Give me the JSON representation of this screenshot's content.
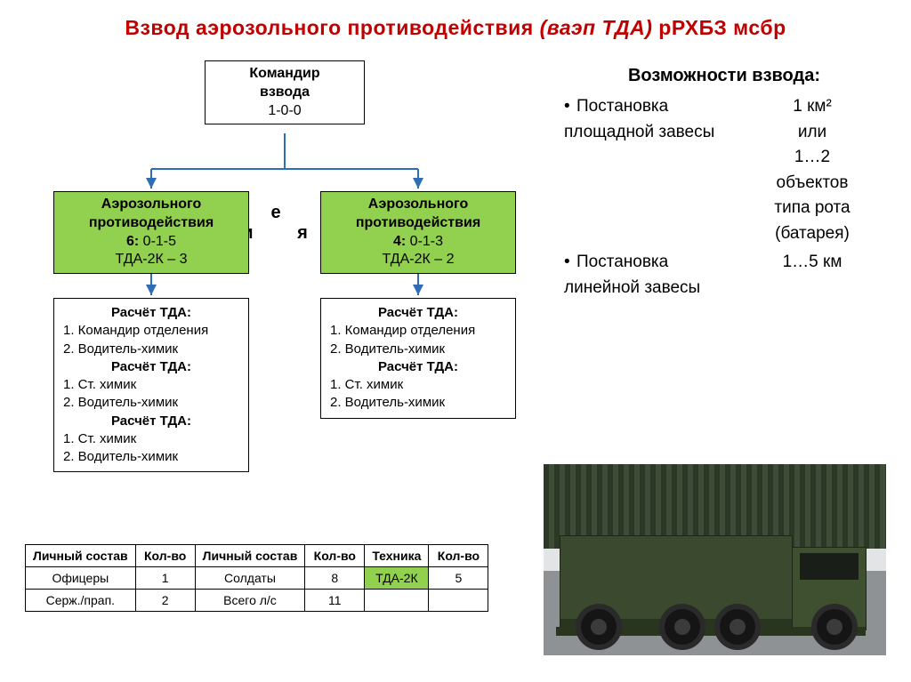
{
  "title_plain": "Взвод аэрозольного противодействия ",
  "title_ital": "(ваэп ТДА) ",
  "title_end": "рРХБЗ мсбр",
  "colors": {
    "accent": "#92d050",
    "title": "#c00000",
    "border": "#000000",
    "arrow": "#2f6db5"
  },
  "nodes": {
    "commander": {
      "line1": "Командир",
      "line2": "взвода",
      "count": "1-0-0"
    },
    "sections_label": "О т д е л е н и я",
    "left": {
      "l1": "Аэрозольного",
      "l2": "противодействия",
      "cnt_bold": "6:",
      "cnt": " 0-1-5",
      "eq": "ТДА-2К – 3"
    },
    "right": {
      "l1": "Аэрозольного",
      "l2": "противодействия",
      "cnt_bold": "4:",
      "cnt": " 0-1-3",
      "eq": "ТДА-2К – 2"
    }
  },
  "detail_left": {
    "blocks": [
      {
        "hd": "Расчёт ТДА:",
        "lines": [
          "1.  Командир отделения",
          "2.  Водитель-химик"
        ]
      },
      {
        "hd": "Расчёт ТДА:",
        "lines": [
          "1.  Ст. химик",
          "2.  Водитель-химик"
        ]
      },
      {
        "hd": "Расчёт ТДА:",
        "lines": [
          "1.  Ст. химик",
          "2.  Водитель-химик"
        ]
      }
    ]
  },
  "detail_right": {
    "blocks": [
      {
        "hd": "Расчёт ТДА:",
        "lines": [
          "1.  Командир отделения",
          "2.  Водитель-химик"
        ]
      },
      {
        "hd": "Расчёт ТДА:",
        "lines": [
          "1.  Ст. химик",
          "2.  Водитель-химик"
        ]
      }
    ]
  },
  "table": {
    "headers": [
      "Личный состав",
      "Кол-во",
      "Личный состав",
      "Кол-во",
      "Техника",
      "Кол-во"
    ],
    "rows": [
      [
        "Офицеры",
        "1",
        "Солдаты",
        "8",
        {
          "text": "ТДА-2К",
          "green": true
        },
        "5"
      ],
      [
        "Серж./прап.",
        "2",
        "Всего л/с",
        "11",
        "",
        ""
      ]
    ]
  },
  "caps": {
    "title": "Возможности взвода:",
    "items": [
      {
        "left": "Постановка площадной завесы",
        "right": "1 км²\nили\n1…2\nобъектов\nтипа рота\n(батарея)"
      },
      {
        "left": "Постановка линейной завесы",
        "right": "1…5 км"
      }
    ]
  }
}
